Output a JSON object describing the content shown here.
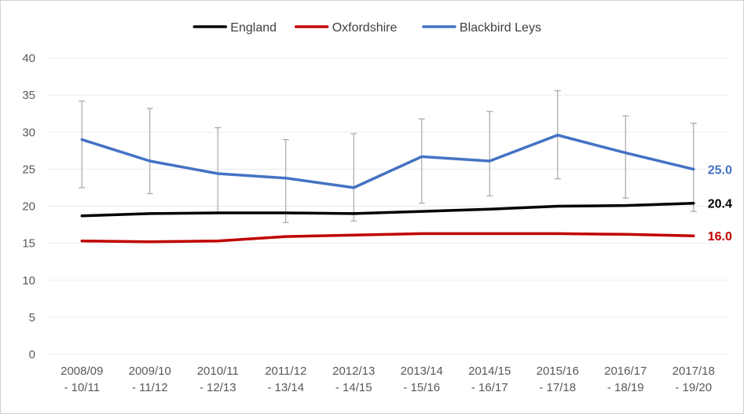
{
  "chart_data": {
    "type": "line",
    "title": "",
    "xlabel": "",
    "ylabel": "",
    "ylim": [
      0,
      40
    ],
    "yticks": [
      0,
      5,
      10,
      15,
      20,
      25,
      30,
      35,
      40
    ],
    "grid": "horizontal",
    "legend_position": "top",
    "categories": [
      [
        "2008/09",
        "- 10/11"
      ],
      [
        "2009/10",
        "- 11/12"
      ],
      [
        "2010/11",
        "- 12/13"
      ],
      [
        "2011/12",
        "- 13/14"
      ],
      [
        "2012/13",
        "- 14/15"
      ],
      [
        "2013/14",
        "- 15/16"
      ],
      [
        "2014/15",
        "- 16/17"
      ],
      [
        "2015/16",
        "- 17/18"
      ],
      [
        "2016/17",
        "- 18/19"
      ],
      [
        "2017/18",
        "- 19/20"
      ]
    ],
    "series": [
      {
        "name": "England",
        "color": "#000000",
        "values": [
          18.7,
          19.0,
          19.1,
          19.1,
          19.0,
          19.3,
          19.6,
          20.0,
          20.1,
          20.4
        ],
        "end_label": "20.4"
      },
      {
        "name": "Oxfordshire",
        "color": "#c00000",
        "values": [
          15.3,
          15.2,
          15.3,
          15.9,
          16.1,
          16.3,
          16.3,
          16.3,
          16.2,
          16.0
        ],
        "end_label": "16.0"
      },
      {
        "name": "Blackbird Leys",
        "color": "#4472c4",
        "values": [
          29.0,
          26.1,
          24.4,
          23.8,
          22.5,
          26.7,
          26.1,
          29.6,
          27.2,
          25.0
        ],
        "end_label": "25.0",
        "error_bars": [
          [
            22.5,
            34.2
          ],
          [
            21.7,
            33.2
          ],
          [
            19.0,
            30.6
          ],
          [
            17.8,
            29.0
          ],
          [
            18.0,
            29.8
          ],
          [
            20.4,
            31.8
          ],
          [
            21.4,
            32.8
          ],
          [
            23.7,
            35.6
          ],
          [
            21.1,
            32.2
          ],
          [
            19.3,
            31.2
          ]
        ]
      }
    ]
  }
}
